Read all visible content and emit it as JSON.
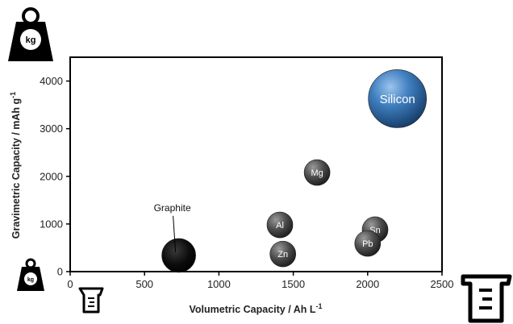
{
  "chart_data": {
    "type": "scatter",
    "xlabel": "Volumetric Capacity / Ah L",
    "xlabel_sup": "-1",
    "ylabel": "Gravimetric Capacity / mAh g",
    "ylabel_sup": "-1",
    "xlim": [
      0,
      2500
    ],
    "ylim": [
      0,
      4500
    ],
    "x_ticks": [
      "0",
      "500",
      "1000",
      "1500",
      "2000",
      "2500"
    ],
    "y_ticks": [
      "0",
      "1000",
      "2000",
      "3000",
      "4000"
    ],
    "grid": false,
    "legend": "none",
    "points": [
      {
        "label": "Graphite",
        "x": 730,
        "y": 340,
        "size": 21,
        "color": "#111111",
        "label_position": "outside",
        "label_visible": true
      },
      {
        "label": "Al",
        "x": 1410,
        "y": 980,
        "size": 16,
        "color": "#4a4a4a",
        "label_position": "inside"
      },
      {
        "label": "Zn",
        "x": 1430,
        "y": 370,
        "size": 16,
        "color": "#4a4a4a",
        "label_position": "inside"
      },
      {
        "label": "Mg",
        "x": 1660,
        "y": 2080,
        "size": 16,
        "color": "#4a4a4a",
        "label_position": "inside"
      },
      {
        "label": "Sn",
        "x": 2050,
        "y": 880,
        "size": 16,
        "color": "#4a4a4a",
        "label_position": "inside"
      },
      {
        "label": "Pb",
        "x": 2000,
        "y": 590,
        "size": 16,
        "color": "#4a4a4a",
        "label_position": "inside"
      },
      {
        "label": "Silicon",
        "x": 2200,
        "y": 3630,
        "size": 36,
        "color": "#2f6aa6",
        "label_position": "inside"
      }
    ]
  },
  "icons": {
    "large_weight": "kg",
    "small_weight": "kg",
    "small_beaker": "measuring-beaker-icon",
    "large_beaker": "measuring-beaker-icon"
  }
}
